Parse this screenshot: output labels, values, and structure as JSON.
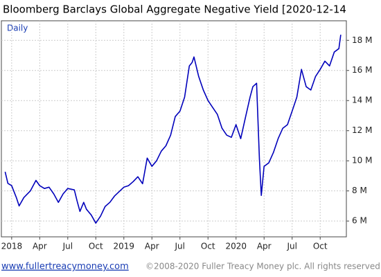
{
  "chart_data": {
    "type": "line",
    "title": "Bloomberg Barclays Global Aggregate Negative Yield [2020-12-14",
    "annotation": "Daily",
    "footer_link": "www.fullertreacymoney.com",
    "footer_copyright": "©2008-2020 Fuller Treacy Money plc. All rights reserved",
    "color": "#0000bb",
    "grid": true,
    "x": [
      -0.7,
      -0.4,
      0,
      0.5,
      0.8,
      1.3,
      2,
      2.6,
      3,
      3.5,
      4,
      4.5,
      5,
      5.5,
      6,
      6.7,
      7,
      7.3,
      7.7,
      8,
      8.5,
      9,
      9.5,
      10,
      10.5,
      11,
      12,
      12.5,
      13,
      13.5,
      14,
      14.5,
      15,
      15.5,
      16,
      16.5,
      17,
      17.5,
      18,
      18.5,
      19,
      19.3,
      19.5,
      20,
      20.5,
      21,
      21.5,
      22,
      22.5,
      23,
      23.5,
      24,
      24.5,
      25,
      25.5,
      25.8,
      26.2,
      26.5,
      26.7,
      27,
      27.5,
      28,
      28.5,
      29,
      29.5,
      30,
      30.5,
      31,
      31.5,
      32,
      32.5,
      33,
      33.5,
      34,
      34.5,
      35,
      35.2
    ],
    "values": [
      9.27,
      8.5,
      8.35,
      7.56,
      7.0,
      7.56,
      8.0,
      8.7,
      8.35,
      8.16,
      8.25,
      7.8,
      7.24,
      7.8,
      8.16,
      8.07,
      7.33,
      6.64,
      7.24,
      6.78,
      6.41,
      5.86,
      6.32,
      6.97,
      7.24,
      7.66,
      8.25,
      8.35,
      8.62,
      8.94,
      8.48,
      10.18,
      9.63,
      10.0,
      10.64,
      11.0,
      11.7,
      12.94,
      13.3,
      14.23,
      16.3,
      16.53,
      16.9,
      15.6,
      14.7,
      14.0,
      13.54,
      13.08,
      12.16,
      11.7,
      11.56,
      12.4,
      11.47,
      12.85,
      14.23,
      14.92,
      15.15,
      10.1,
      7.7,
      9.63,
      9.86,
      10.55,
      11.47,
      12.16,
      12.4,
      13.3,
      14.23,
      16.07,
      14.92,
      14.7,
      15.6,
      16.07,
      16.62,
      16.3,
      17.22,
      17.45,
      18.37
    ],
    "xlim": [
      -1.1,
      35.8
    ],
    "xticks": [
      {
        "value": 0,
        "label": "2018"
      },
      {
        "value": 3,
        "label": "Apr"
      },
      {
        "value": 6,
        "label": "Jul"
      },
      {
        "value": 9,
        "label": "Oct"
      },
      {
        "value": 12,
        "label": "2019"
      },
      {
        "value": 15,
        "label": "Apr"
      },
      {
        "value": 18,
        "label": "Jul"
      },
      {
        "value": 21,
        "label": "Oct"
      },
      {
        "value": 24,
        "label": "2020"
      },
      {
        "value": 27,
        "label": "Apr"
      },
      {
        "value": 30,
        "label": "Jul"
      },
      {
        "value": 33,
        "label": "Oct"
      }
    ],
    "ylim": [
      4.95,
      19.3
    ],
    "yticks": [
      {
        "value": 6,
        "label": "6 M"
      },
      {
        "value": 8,
        "label": "8 M"
      },
      {
        "value": 10,
        "label": "10 M"
      },
      {
        "value": 12,
        "label": "12 M"
      },
      {
        "value": 14,
        "label": "14 M"
      },
      {
        "value": 16,
        "label": "16 M"
      },
      {
        "value": 18,
        "label": "18 M"
      }
    ]
  }
}
